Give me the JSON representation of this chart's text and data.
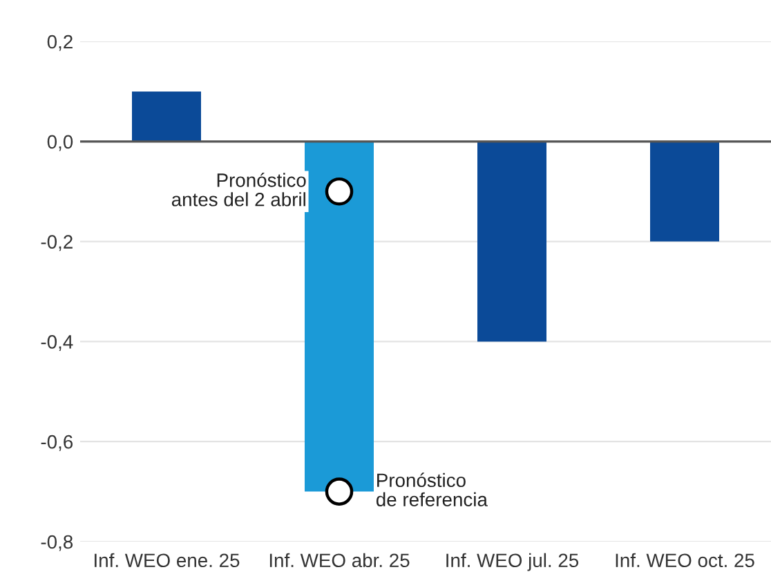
{
  "chart_data": {
    "type": "bar",
    "categories": [
      "Inf. WEO ene. 25",
      "Inf. WEO abr. 25",
      "Inf. WEO jul. 25",
      "Inf. WEO oct. 25"
    ],
    "series": [
      {
        "values": [
          0.1,
          -0.7,
          -0.4,
          -0.2
        ],
        "colors": [
          "#0b4a98",
          "#1b9ad7",
          "#0b4a98",
          "#0b4a98"
        ]
      },
      {
        "type": "scatter",
        "x": [
          "Inf. WEO abr. 25",
          "Inf. WEO abr. 25"
        ],
        "values": [
          -0.1,
          -0.7
        ],
        "color": "#ffffff",
        "marker": "circle"
      }
    ],
    "ylim": [
      -0.8,
      0.2
    ],
    "yticks": [
      {
        "value": 0.2,
        "label": "0,2"
      },
      {
        "value": 0.0,
        "label": "0,0"
      },
      {
        "value": -0.2,
        "label": "-0,2"
      },
      {
        "value": -0.4,
        "label": "-0,4"
      },
      {
        "value": -0.6,
        "label": "-0,6"
      },
      {
        "value": -0.8,
        "label": "-0,8"
      }
    ],
    "grid": "y",
    "ref_lines": [
      {
        "axis": "y",
        "value": 0,
        "color": "#555555"
      }
    ],
    "annotations": [
      {
        "text": "Pronóstico\nantes del 2 abril",
        "x": "Inf. WEO abr. 25",
        "y": -0.1
      },
      {
        "text": "Pronóstico\nde referencia",
        "x": "Inf. WEO abr. 25",
        "y": -0.7
      }
    ]
  }
}
